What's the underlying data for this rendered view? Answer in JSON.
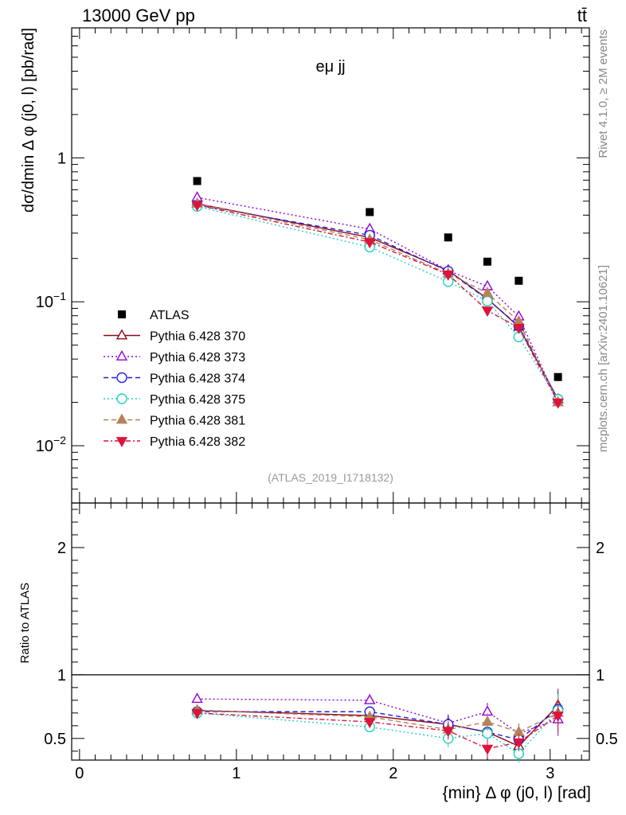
{
  "header": {
    "energy_label": "13000 GeV pp",
    "process_label": "tt̄",
    "channel_label": "eμ jj",
    "analysis_id": "(ATLAS_2019_I1718132)",
    "rivet_label": "Rivet 4.1.0, ≥ 2M events",
    "mcplots_label": "mcplots.cern.ch [arXiv:2401.10621]"
  },
  "chart_data": {
    "type": "scatter",
    "title": "",
    "xlabel": "{min} Δ φ (j0, l) [rad]",
    "ylabel_main": "dσ/dmin Δ φ (j0, l) [pb/rad]",
    "ylabel_ratio": "Ratio to ATLAS",
    "xlim": [
      -0.05,
      3.25
    ],
    "ylim_main": [
      0.004,
      8
    ],
    "ylim_ratio": [
      0.33,
      2.35
    ],
    "yscale_main": "log",
    "x_ticks": [
      "0",
      "1",
      "2",
      "3"
    ],
    "y_ticks_main": [
      "1",
      "10^-1",
      "10^-2"
    ],
    "y_ticks_ratio": [
      "0.5",
      "1",
      "2"
    ],
    "legend_position": "bottom-left",
    "x": [
      0.75,
      1.85,
      2.35,
      2.6,
      2.8,
      3.05
    ],
    "data_series": {
      "name": "ATLAS",
      "color": "#000000",
      "values": [
        0.69,
        0.42,
        0.28,
        0.19,
        0.14,
        0.03
      ]
    },
    "series": [
      {
        "name": "Pythia 6.428 370",
        "color": "#8b0a1a",
        "marker": "triangle-up-open",
        "dash": "",
        "values": [
          0.48,
          0.28,
          0.165,
          0.105,
          0.067,
          0.021
        ],
        "ratio": [
          0.72,
          0.68,
          0.61,
          0.55,
          0.44,
          0.76
        ]
      },
      {
        "name": "Pythia 6.428 373",
        "color": "#9400d3",
        "marker": "triangle-up-open",
        "dash": "2,3",
        "values": [
          0.53,
          0.32,
          0.165,
          0.128,
          0.079,
          0.02
        ],
        "ratio": [
          0.81,
          0.8,
          0.62,
          0.71,
          0.54,
          0.65
        ]
      },
      {
        "name": "Pythia 6.428 374",
        "color": "#1f1fe0",
        "marker": "circle-open",
        "dash": "6,4",
        "values": [
          0.47,
          0.29,
          0.163,
          0.104,
          0.068,
          0.021
        ],
        "ratio": [
          0.71,
          0.71,
          0.61,
          0.55,
          0.49,
          0.73
        ]
      },
      {
        "name": "Pythia 6.428 375",
        "color": "#20d0c0",
        "marker": "circle-open",
        "dash": "2,3",
        "values": [
          0.46,
          0.24,
          0.138,
          0.101,
          0.057,
          0.021
        ],
        "ratio": [
          0.7,
          0.59,
          0.5,
          0.54,
          0.38,
          0.72
        ]
      },
      {
        "name": "Pythia 6.428 381",
        "color": "#b5835a",
        "marker": "triangle-up-filled",
        "dash": "6,4",
        "values": [
          0.48,
          0.27,
          0.157,
          0.115,
          0.073,
          0.02
        ],
        "ratio": [
          0.72,
          0.67,
          0.57,
          0.63,
          0.55,
          0.7
        ]
      },
      {
        "name": "Pythia 6.428 382",
        "color": "#dc143c",
        "marker": "triangle-down-filled",
        "dash": "6,3,2,3",
        "values": [
          0.47,
          0.26,
          0.155,
          0.087,
          0.066,
          0.02
        ],
        "ratio": [
          0.7,
          0.63,
          0.56,
          0.42,
          0.47,
          0.68
        ]
      }
    ]
  }
}
